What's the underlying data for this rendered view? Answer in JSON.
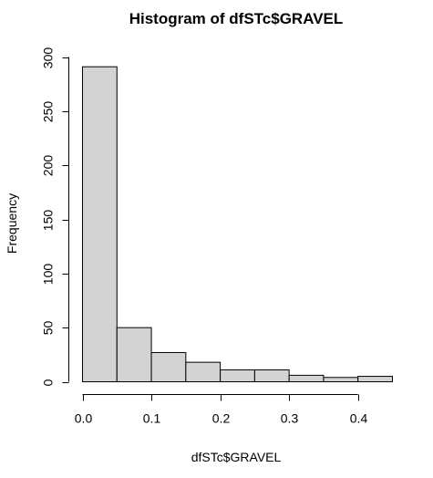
{
  "chart_data": {
    "type": "bar",
    "title": "Histogram of dfSTc$GRAVEL",
    "xlabel": "dfSTc$GRAVEL",
    "ylabel": "Frequency",
    "bins": [
      {
        "start": 0.0,
        "end": 0.05,
        "count": 291
      },
      {
        "start": 0.05,
        "end": 0.1,
        "count": 50
      },
      {
        "start": 0.1,
        "end": 0.15,
        "count": 27
      },
      {
        "start": 0.15,
        "end": 0.2,
        "count": 18
      },
      {
        "start": 0.2,
        "end": 0.25,
        "count": 11
      },
      {
        "start": 0.25,
        "end": 0.3,
        "count": 11
      },
      {
        "start": 0.3,
        "end": 0.35,
        "count": 6
      },
      {
        "start": 0.35,
        "end": 0.4,
        "count": 4
      },
      {
        "start": 0.4,
        "end": 0.45,
        "count": 5
      }
    ],
    "xlim": [
      0,
      0.45
    ],
    "ylim": [
      0,
      300
    ],
    "x_ticks": [
      0.0,
      0.1,
      0.2,
      0.3,
      0.4
    ],
    "x_tick_labels": [
      "0.0",
      "0.1",
      "0.2",
      "0.3",
      "0.4"
    ],
    "y_ticks": [
      0,
      50,
      100,
      150,
      200,
      250,
      300
    ],
    "y_tick_labels": [
      "0",
      "50",
      "100",
      "150",
      "200",
      "250",
      "300"
    ],
    "bar_fill": "#d3d3d3",
    "bar_stroke": "#000000",
    "grid": false,
    "legend": "none"
  }
}
